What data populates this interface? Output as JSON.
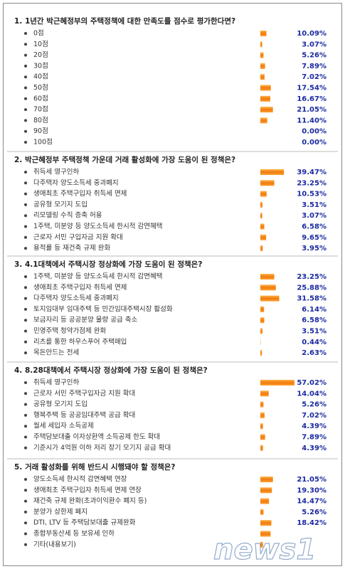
{
  "sections": [
    {
      "title": "1. 1년간 박근혜정부의 주택정책에 대한 만족도를 점수로 평가한다면?",
      "items": [
        "0점",
        "10점",
        "20점",
        "30점",
        "40점",
        "50점",
        "60점",
        "70점",
        "80점",
        "90점",
        "100점"
      ],
      "values": [
        10.09,
        3.07,
        5.26,
        7.89,
        7.02,
        17.54,
        16.67,
        21.05,
        11.4,
        0.0,
        0.0
      ],
      "value_labels": [
        "10.09%",
        "3.07%",
        "5.26%",
        "7.89%",
        "7.02%",
        "17.54%",
        "16.67%",
        "21.05%",
        "11.40%",
        "0.00%",
        "0.00%"
      ]
    },
    {
      "title": "2. 박근혜정부 주택정책 가운데 거래 활성화에 가장 도움이 된 정책은?",
      "items": [
        "취득세 영구인하",
        "다주택자 양도소득세 중과폐지",
        "생애최초 주택구입자 취득세 면제",
        "공유형 모기지 도입",
        "리모델링 수직 증축 허용",
        "1주택, 미분양 등 양도소득세 한시적 감면혜택",
        "근로자 서민 구입자금 지원 확대",
        "용적률 등 재건축 규제 완화"
      ],
      "values": [
        39.47,
        23.25,
        10.53,
        3.51,
        3.07,
        6.58,
        9.65,
        3.95
      ],
      "value_labels": [
        "39.47%",
        "23.25%",
        "10.53%",
        "3.51%",
        "3.07%",
        "6.58%",
        "9.65%",
        "3.95%"
      ]
    },
    {
      "title": "3. 4.1대책에서 주택시장 정상화에 가장 도움이 된 정책은?",
      "items": [
        "1주택, 미분양 등 양도소득세 한시적 감면혜택",
        "생애최초 주택구입자 취득세 면제",
        "다주택자 양도소득세 중과폐지",
        "토지임대부 임대주택 등 민간임대주택시장 활성화",
        "보금자리 등 공공분양 물량 공급 축소",
        "민영주택 청약가점제 완화",
        "리츠를 통한 하우스푸어 주택매입",
        "목돈안드는 전세"
      ],
      "values": [
        23.25,
        25.88,
        31.58,
        6.14,
        6.58,
        3.51,
        0.44,
        2.63
      ],
      "value_labels": [
        "23.25%",
        "25.88%",
        "31.58%",
        "6.14%",
        "6.58%",
        "3.51%",
        "0.44%",
        "2.63%"
      ]
    },
    {
      "title": "4. 8.28대책에서 주택시장 정상화에 가장 도움이 된 정책은?",
      "items": [
        "취득세 영구인하",
        "근로자 서민 주택구입자금 지원 확대",
        "공유형 모기지 도입",
        "행복주택 등 공공임대주택 공급 확대",
        "월세 세입자 소득공제",
        "주택담보대출 이자상환액 소득공제 한도 확대",
        "기준시가 4억원 이하 저리 장기 모기지 공급 확대"
      ],
      "values": [
        57.02,
        14.04,
        5.26,
        7.02,
        4.39,
        7.89,
        4.39
      ],
      "value_labels": [
        "57.02%",
        "14.04%",
        "5.26%",
        "7.02%",
        "4.39%",
        "7.89%",
        "4.39%"
      ]
    },
    {
      "title": "5. 거래 활성화를 위해 반드시 시행돼야 할 정책은?",
      "items": [
        "양도소득세 한시적 감면혜택 연장",
        "생애최초 주택구입자 취득세 면제 연장",
        "재건축 규제 완화(초과이익환수 폐지 등)",
        "분양가 상한제 폐지",
        "DTI, LTV 등 주택담보대출 규제완화",
        "종합부동산세 등 보유세 인하",
        "기타(내용보기)"
      ],
      "values": [
        21.05,
        19.3,
        14.47,
        5.26,
        18.42,
        17.1,
        4.4
      ],
      "value_labels": [
        "21.05%",
        "19.30%",
        "14.47%",
        "5.26%",
        "18.42%",
        null,
        null
      ]
    }
  ],
  "watermark": "news1"
}
